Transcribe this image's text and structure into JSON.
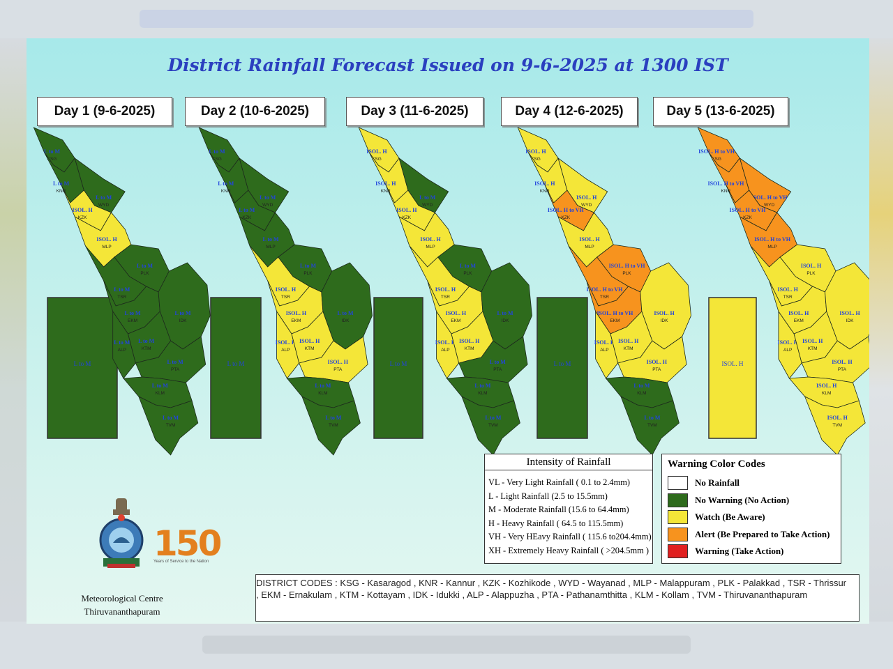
{
  "title": "District Rainfall Forecast Issued on  9-6-2025 at 1300 IST",
  "colors": {
    "no_rainfall": "#ffffff",
    "no_warning": "#2e6b1c",
    "watch": "#f4e638",
    "alert": "#f7931e",
    "warning": "#e02020",
    "title": "#2a3fbf",
    "label_text": "#2244dd"
  },
  "days": [
    {
      "label": "Day 1 (9-6-2025)",
      "lakshadweep": {
        "color": "no_warning",
        "text": "L to M"
      },
      "districts": [
        {
          "code": "KSG",
          "color": "no_warning",
          "label": "L to M"
        },
        {
          "code": "KNR",
          "color": "no_warning",
          "label": "L to M"
        },
        {
          "code": "WYD",
          "color": "no_warning",
          "label": "L to M"
        },
        {
          "code": "KZK",
          "color": "watch",
          "label": "ISOL. H"
        },
        {
          "code": "MLP",
          "color": "watch",
          "label": "ISOL. H"
        },
        {
          "code": "PLK",
          "color": "no_warning",
          "label": "L to M"
        },
        {
          "code": "TSR",
          "color": "no_warning",
          "label": "L to M"
        },
        {
          "code": "EKM",
          "color": "no_warning",
          "label": "L to M"
        },
        {
          "code": "IDK",
          "color": "no_warning",
          "label": "L to M"
        },
        {
          "code": "ALP",
          "color": "no_warning",
          "label": "L to M"
        },
        {
          "code": "KTM",
          "color": "no_warning",
          "label": "L to M"
        },
        {
          "code": "PTA",
          "color": "no_warning",
          "label": "L to M"
        },
        {
          "code": "KLM",
          "color": "no_warning",
          "label": "L to M"
        },
        {
          "code": "TVM",
          "color": "no_warning",
          "label": "L to M"
        }
      ]
    },
    {
      "label": "Day 2 (10-6-2025)",
      "lakshadweep": {
        "color": "no_warning",
        "text": "L to M"
      },
      "districts": [
        {
          "code": "KSG",
          "color": "no_warning",
          "label": "L to M"
        },
        {
          "code": "KNR",
          "color": "no_warning",
          "label": "L to M"
        },
        {
          "code": "WYD",
          "color": "no_warning",
          "label": "L to M"
        },
        {
          "code": "KZK",
          "color": "no_warning",
          "label": "L to M"
        },
        {
          "code": "MLP",
          "color": "no_warning",
          "label": "L to M"
        },
        {
          "code": "PLK",
          "color": "no_warning",
          "label": "L to M"
        },
        {
          "code": "TSR",
          "color": "watch",
          "label": "ISOL. H"
        },
        {
          "code": "EKM",
          "color": "watch",
          "label": "ISOL. H"
        },
        {
          "code": "IDK",
          "color": "no_warning",
          "label": "L to M"
        },
        {
          "code": "ALP",
          "color": "watch",
          "label": "ISOL. H"
        },
        {
          "code": "KTM",
          "color": "watch",
          "label": "ISOL. H"
        },
        {
          "code": "PTA",
          "color": "watch",
          "label": "ISOL. H"
        },
        {
          "code": "KLM",
          "color": "no_warning",
          "label": "L to M"
        },
        {
          "code": "TVM",
          "color": "no_warning",
          "label": "L to M"
        }
      ]
    },
    {
      "label": "Day 3 (11-6-2025)",
      "lakshadweep": {
        "color": "no_warning",
        "text": "L to M"
      },
      "districts": [
        {
          "code": "KSG",
          "color": "watch",
          "label": "ISOL. H"
        },
        {
          "code": "KNR",
          "color": "watch",
          "label": "ISOL. H"
        },
        {
          "code": "WYD",
          "color": "no_warning",
          "label": "L to M"
        },
        {
          "code": "KZK",
          "color": "watch",
          "label": "ISOL. H"
        },
        {
          "code": "MLP",
          "color": "watch",
          "label": "ISOL. H"
        },
        {
          "code": "PLK",
          "color": "no_warning",
          "label": "L to M"
        },
        {
          "code": "TSR",
          "color": "watch",
          "label": "ISOL. H"
        },
        {
          "code": "EKM",
          "color": "watch",
          "label": "ISOL. H"
        },
        {
          "code": "IDK",
          "color": "no_warning",
          "label": "L to M"
        },
        {
          "code": "ALP",
          "color": "watch",
          "label": "ISOL. H"
        },
        {
          "code": "KTM",
          "color": "watch",
          "label": "ISOL. H"
        },
        {
          "code": "PTA",
          "color": "no_warning",
          "label": "L to M"
        },
        {
          "code": "KLM",
          "color": "no_warning",
          "label": "L to M"
        },
        {
          "code": "TVM",
          "color": "no_warning",
          "label": "L to M"
        }
      ]
    },
    {
      "label": "Day 4 (12-6-2025)",
      "lakshadweep": {
        "color": "no_warning",
        "text": "L to M"
      },
      "districts": [
        {
          "code": "KSG",
          "color": "watch",
          "label": "ISOL. H"
        },
        {
          "code": "KNR",
          "color": "watch",
          "label": "ISOL. H"
        },
        {
          "code": "WYD",
          "color": "watch",
          "label": "ISOL. H"
        },
        {
          "code": "KZK",
          "color": "alert",
          "label": "ISOL. H to VH"
        },
        {
          "code": "MLP",
          "color": "watch",
          "label": "ISOL. H"
        },
        {
          "code": "PLK",
          "color": "alert",
          "label": "ISOL. H to VH"
        },
        {
          "code": "TSR",
          "color": "alert",
          "label": "ISOL. H to VH"
        },
        {
          "code": "EKM",
          "color": "alert",
          "label": "ISOL. H to VH"
        },
        {
          "code": "IDK",
          "color": "watch",
          "label": "ISOL. H"
        },
        {
          "code": "ALP",
          "color": "watch",
          "label": "ISOL. H"
        },
        {
          "code": "KTM",
          "color": "watch",
          "label": "ISOL. H"
        },
        {
          "code": "PTA",
          "color": "watch",
          "label": "ISOL. H"
        },
        {
          "code": "KLM",
          "color": "no_warning",
          "label": "L to M"
        },
        {
          "code": "TVM",
          "color": "no_warning",
          "label": "L to M"
        }
      ]
    },
    {
      "label": "Day 5 (13-6-2025)",
      "lakshadweep": {
        "color": "watch",
        "text": "ISOL. H"
      },
      "districts": [
        {
          "code": "KSG",
          "color": "alert",
          "label": "ISOL. H to VH"
        },
        {
          "code": "KNR",
          "color": "alert",
          "label": "ISOL. H to VH"
        },
        {
          "code": "WYD",
          "color": "alert",
          "label": "ISOL. H to VH"
        },
        {
          "code": "KZK",
          "color": "alert",
          "label": "ISOL. H to VH"
        },
        {
          "code": "MLP",
          "color": "alert",
          "label": "ISOL. H to VH"
        },
        {
          "code": "PLK",
          "color": "watch",
          "label": "ISOL. H"
        },
        {
          "code": "TSR",
          "color": "watch",
          "label": "ISOL. H"
        },
        {
          "code": "EKM",
          "color": "watch",
          "label": "ISOL. H"
        },
        {
          "code": "IDK",
          "color": "watch",
          "label": "ISOL. H"
        },
        {
          "code": "ALP",
          "color": "watch",
          "label": "ISOL. H"
        },
        {
          "code": "KTM",
          "color": "watch",
          "label": "ISOL. H"
        },
        {
          "code": "PTA",
          "color": "watch",
          "label": "ISOL. H"
        },
        {
          "code": "KLM",
          "color": "watch",
          "label": "ISOL. H"
        },
        {
          "code": "TVM",
          "color": "watch",
          "label": "ISOL. H"
        }
      ]
    }
  ],
  "intensity_legend": {
    "title": "Intensity of Rainfall",
    "items": [
      "VL - Very Light Rainfall ( 0.1 to 2.4mm)",
      "L  - Light Rainfall (2.5 to 15.5mm)",
      "M  - Moderate Rainfall (15.6 to 64.4mm)",
      "H  - Heavy Rainfall ( 64.5 to 115.5mm)",
      "VH - Very HEavy Rainfall ( 115.6 to204.4mm)",
      "XH - Extremely Heavy Rainfall ( >204.5mm )"
    ]
  },
  "warning_legend": {
    "title": "Warning Color Codes",
    "items": [
      {
        "label": "No Rainfall",
        "color": "#ffffff"
      },
      {
        "label": "No Warning (No Action)",
        "color": "#2e6b1c"
      },
      {
        "label": "Watch (Be Aware)",
        "color": "#f4e638"
      },
      {
        "label": "Alert (Be Prepared to Take Action)",
        "color": "#f7931e"
      },
      {
        "label": "Warning (Take Action)",
        "color": "#e02020"
      }
    ]
  },
  "district_codes": {
    "line1": "DISTRICT CODES : KSG - Kasaragod , KNR - Kannur , KZK - Kozhikode , WYD - Wayanad , MLP - Malappuram , PLK - Palakkad , TSR - Thrissur",
    "line2": " , EKM - Ernakulam , KTM - Kottayam , IDK - Idukki , ALP - Alappuzha ,      PTA - Pathanamthitta , KLM - Kollam , TVM - Thiruvananthapuram"
  },
  "logo": {
    "anniversary_number": "150",
    "anniversary_tagline": "Years of Service to the Nation",
    "org_line1": "Meteorological Centre",
    "org_line2": "Thiruvananthapuram"
  }
}
